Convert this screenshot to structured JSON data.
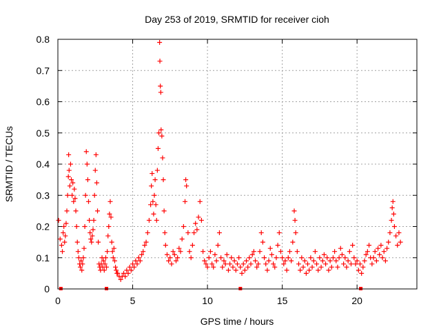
{
  "chart_data": {
    "type": "scatter",
    "title": "Day 253 of 2019, SRMTID for receiver cioh",
    "xlabel": "GPS time / hours",
    "ylabel": "SRMTID / TECUs",
    "xlim": [
      0,
      24
    ],
    "ylim": [
      0,
      0.8
    ],
    "x_ticks": [
      0,
      5,
      10,
      15,
      20
    ],
    "y_ticks": [
      0,
      0.1,
      0.2,
      0.3,
      0.4,
      0.5,
      0.6,
      0.7,
      0.8
    ],
    "y_tick_labels": [
      "0",
      "0.1",
      "0.2",
      "0.3",
      "0.4",
      "0.5",
      "0.6",
      "0.7",
      "0.8"
    ],
    "grid": true,
    "marker": "+",
    "series_color": "#ff0000",
    "baseline_markers_x": [
      0.2,
      3.25,
      12.2,
      20.25
    ],
    "series": [
      {
        "name": "SRMTID",
        "points": [
          [
            0.05,
            0.22
          ],
          [
            0.15,
            0.16
          ],
          [
            0.25,
            0.14
          ],
          [
            0.3,
            0.12
          ],
          [
            0.35,
            0.18
          ],
          [
            0.4,
            0.2
          ],
          [
            0.45,
            0.15
          ],
          [
            0.5,
            0.17
          ],
          [
            0.55,
            0.21
          ],
          [
            0.6,
            0.25
          ],
          [
            0.65,
            0.3
          ],
          [
            0.7,
            0.36
          ],
          [
            0.72,
            0.43
          ],
          [
            0.75,
            0.38
          ],
          [
            0.8,
            0.33
          ],
          [
            0.85,
            0.4
          ],
          [
            0.9,
            0.35
          ],
          [
            0.95,
            0.3
          ],
          [
            1.0,
            0.34
          ],
          [
            1.05,
            0.28
          ],
          [
            1.1,
            0.32
          ],
          [
            1.15,
            0.29
          ],
          [
            1.2,
            0.25
          ],
          [
            1.25,
            0.2
          ],
          [
            1.3,
            0.15
          ],
          [
            1.35,
            0.12
          ],
          [
            1.4,
            0.1
          ],
          [
            1.45,
            0.08
          ],
          [
            1.5,
            0.07
          ],
          [
            1.55,
            0.09
          ],
          [
            1.6,
            0.06
          ],
          [
            1.65,
            0.08
          ],
          [
            1.7,
            0.1
          ],
          [
            1.75,
            0.13
          ],
          [
            1.8,
            0.2
          ],
          [
            1.85,
            0.3
          ],
          [
            1.9,
            0.44
          ],
          [
            1.95,
            0.4
          ],
          [
            2.0,
            0.35
          ],
          [
            2.05,
            0.28
          ],
          [
            2.1,
            0.22
          ],
          [
            2.15,
            0.18
          ],
          [
            2.2,
            0.16
          ],
          [
            2.25,
            0.15
          ],
          [
            2.3,
            0.17
          ],
          [
            2.35,
            0.19
          ],
          [
            2.4,
            0.22
          ],
          [
            2.45,
            0.3
          ],
          [
            2.5,
            0.38
          ],
          [
            2.55,
            0.43
          ],
          [
            2.6,
            0.34
          ],
          [
            2.65,
            0.25
          ],
          [
            2.7,
            0.15
          ],
          [
            2.75,
            0.08
          ],
          [
            2.8,
            0.07
          ],
          [
            2.85,
            0.06
          ],
          [
            2.9,
            0.08
          ],
          [
            2.95,
            0.1
          ],
          [
            3.0,
            0.07
          ],
          [
            3.05,
            0.09
          ],
          [
            3.1,
            0.06
          ],
          [
            3.15,
            0.08
          ],
          [
            3.2,
            0.1
          ],
          [
            3.25,
            0.07
          ],
          [
            3.3,
            0.12
          ],
          [
            3.35,
            0.17
          ],
          [
            3.4,
            0.2
          ],
          [
            3.45,
            0.24
          ],
          [
            3.5,
            0.28
          ],
          [
            3.55,
            0.23
          ],
          [
            3.6,
            0.15
          ],
          [
            3.65,
            0.12
          ],
          [
            3.7,
            0.1
          ],
          [
            3.75,
            0.13
          ],
          [
            3.8,
            0.09
          ],
          [
            3.85,
            0.07
          ],
          [
            3.9,
            0.06
          ],
          [
            3.95,
            0.05
          ],
          [
            4.0,
            0.05
          ],
          [
            4.1,
            0.04
          ],
          [
            4.2,
            0.03
          ],
          [
            4.3,
            0.04
          ],
          [
            4.4,
            0.05
          ],
          [
            4.5,
            0.04
          ],
          [
            4.6,
            0.06
          ],
          [
            4.7,
            0.05
          ],
          [
            4.8,
            0.07
          ],
          [
            4.9,
            0.06
          ],
          [
            5.0,
            0.08
          ],
          [
            5.1,
            0.07
          ],
          [
            5.2,
            0.09
          ],
          [
            5.3,
            0.08
          ],
          [
            5.4,
            0.1
          ],
          [
            5.5,
            0.09
          ],
          [
            5.6,
            0.11
          ],
          [
            5.7,
            0.12
          ],
          [
            5.8,
            0.14
          ],
          [
            5.9,
            0.15
          ],
          [
            6.0,
            0.18
          ],
          [
            6.1,
            0.22
          ],
          [
            6.2,
            0.27
          ],
          [
            6.25,
            0.33
          ],
          [
            6.3,
            0.37
          ],
          [
            6.35,
            0.28
          ],
          [
            6.4,
            0.24
          ],
          [
            6.45,
            0.3
          ],
          [
            6.5,
            0.35
          ],
          [
            6.55,
            0.27
          ],
          [
            6.6,
            0.22
          ],
          [
            6.65,
            0.38
          ],
          [
            6.7,
            0.45
          ],
          [
            6.75,
            0.5
          ],
          [
            6.8,
            0.79
          ],
          [
            6.82,
            0.73
          ],
          [
            6.85,
            0.65
          ],
          [
            6.88,
            0.63
          ],
          [
            6.9,
            0.51
          ],
          [
            6.95,
            0.49
          ],
          [
            7.0,
            0.42
          ],
          [
            7.05,
            0.35
          ],
          [
            7.1,
            0.25
          ],
          [
            7.15,
            0.18
          ],
          [
            7.2,
            0.14
          ],
          [
            7.3,
            0.11
          ],
          [
            7.4,
            0.09
          ],
          [
            7.5,
            0.1
          ],
          [
            7.6,
            0.08
          ],
          [
            7.7,
            0.12
          ],
          [
            7.8,
            0.11
          ],
          [
            7.9,
            0.09
          ],
          [
            8.0,
            0.1
          ],
          [
            8.1,
            0.13
          ],
          [
            8.2,
            0.12
          ],
          [
            8.3,
            0.16
          ],
          [
            8.4,
            0.2
          ],
          [
            8.5,
            0.28
          ],
          [
            8.55,
            0.35
          ],
          [
            8.6,
            0.33
          ],
          [
            8.7,
            0.18
          ],
          [
            8.8,
            0.12
          ],
          [
            8.9,
            0.1
          ],
          [
            9.0,
            0.14
          ],
          [
            9.1,
            0.18
          ],
          [
            9.2,
            0.21
          ],
          [
            9.3,
            0.19
          ],
          [
            9.4,
            0.23
          ],
          [
            9.5,
            0.28
          ],
          [
            9.6,
            0.22
          ],
          [
            9.7,
            0.12
          ],
          [
            9.8,
            0.09
          ],
          [
            9.9,
            0.08
          ],
          [
            10.0,
            0.07
          ],
          [
            10.1,
            0.1
          ],
          [
            10.2,
            0.12
          ],
          [
            10.3,
            0.08
          ],
          [
            10.4,
            0.07
          ],
          [
            10.5,
            0.11
          ],
          [
            10.6,
            0.09
          ],
          [
            10.7,
            0.14
          ],
          [
            10.8,
            0.18
          ],
          [
            10.9,
            0.1
          ],
          [
            11.0,
            0.07
          ],
          [
            11.1,
            0.09
          ],
          [
            11.2,
            0.08
          ],
          [
            11.3,
            0.11
          ],
          [
            11.4,
            0.06
          ],
          [
            11.5,
            0.08
          ],
          [
            11.6,
            0.1
          ],
          [
            11.7,
            0.07
          ],
          [
            11.8,
            0.09
          ],
          [
            11.9,
            0.06
          ],
          [
            12.0,
            0.08
          ],
          [
            12.1,
            0.1
          ],
          [
            12.2,
            0.07
          ],
          [
            12.3,
            0.05
          ],
          [
            12.4,
            0.08
          ],
          [
            12.5,
            0.06
          ],
          [
            12.6,
            0.09
          ],
          [
            12.7,
            0.07
          ],
          [
            12.8,
            0.1
          ],
          [
            12.9,
            0.08
          ],
          [
            13.0,
            0.11
          ],
          [
            13.1,
            0.12
          ],
          [
            13.2,
            0.09
          ],
          [
            13.3,
            0.07
          ],
          [
            13.4,
            0.08
          ],
          [
            13.5,
            0.12
          ],
          [
            13.6,
            0.18
          ],
          [
            13.7,
            0.15
          ],
          [
            13.8,
            0.1
          ],
          [
            13.9,
            0.08
          ],
          [
            14.0,
            0.06
          ],
          [
            14.1,
            0.09
          ],
          [
            14.2,
            0.13
          ],
          [
            14.3,
            0.11
          ],
          [
            14.4,
            0.08
          ],
          [
            14.5,
            0.07
          ],
          [
            14.6,
            0.1
          ],
          [
            14.7,
            0.14
          ],
          [
            14.8,
            0.18
          ],
          [
            14.9,
            0.12
          ],
          [
            15.0,
            0.1
          ],
          [
            15.1,
            0.08
          ],
          [
            15.2,
            0.09
          ],
          [
            15.3,
            0.06
          ],
          [
            15.4,
            0.1
          ],
          [
            15.5,
            0.12
          ],
          [
            15.6,
            0.09
          ],
          [
            15.7,
            0.15
          ],
          [
            15.8,
            0.25
          ],
          [
            15.85,
            0.22
          ],
          [
            15.9,
            0.18
          ],
          [
            16.0,
            0.12
          ],
          [
            16.1,
            0.08
          ],
          [
            16.2,
            0.06
          ],
          [
            16.3,
            0.1
          ],
          [
            16.4,
            0.07
          ],
          [
            16.5,
            0.09
          ],
          [
            16.6,
            0.05
          ],
          [
            16.7,
            0.08
          ],
          [
            16.8,
            0.06
          ],
          [
            16.9,
            0.1
          ],
          [
            17.0,
            0.07
          ],
          [
            17.1,
            0.09
          ],
          [
            17.2,
            0.12
          ],
          [
            17.3,
            0.08
          ],
          [
            17.4,
            0.06
          ],
          [
            17.5,
            0.1
          ],
          [
            17.6,
            0.07
          ],
          [
            17.7,
            0.09
          ],
          [
            17.8,
            0.11
          ],
          [
            17.9,
            0.08
          ],
          [
            18.0,
            0.1
          ],
          [
            18.1,
            0.06
          ],
          [
            18.2,
            0.09
          ],
          [
            18.3,
            0.07
          ],
          [
            18.4,
            0.1
          ],
          [
            18.5,
            0.12
          ],
          [
            18.6,
            0.09
          ],
          [
            18.7,
            0.07
          ],
          [
            18.8,
            0.1
          ],
          [
            18.9,
            0.13
          ],
          [
            19.0,
            0.11
          ],
          [
            19.1,
            0.08
          ],
          [
            19.2,
            0.1
          ],
          [
            19.3,
            0.07
          ],
          [
            19.4,
            0.09
          ],
          [
            19.5,
            0.12
          ],
          [
            19.6,
            0.08
          ],
          [
            19.7,
            0.14
          ],
          [
            19.8,
            0.1
          ],
          [
            19.9,
            0.08
          ],
          [
            20.0,
            0.09
          ],
          [
            20.1,
            0.06
          ],
          [
            20.2,
            0.08
          ],
          [
            20.3,
            0.05
          ],
          [
            20.4,
            0.07
          ],
          [
            20.5,
            0.09
          ],
          [
            20.6,
            0.11
          ],
          [
            20.7,
            0.12
          ],
          [
            20.8,
            0.14
          ],
          [
            20.9,
            0.1
          ],
          [
            21.0,
            0.08
          ],
          [
            21.1,
            0.1
          ],
          [
            21.2,
            0.12
          ],
          [
            21.3,
            0.09
          ],
          [
            21.4,
            0.13
          ],
          [
            21.5,
            0.11
          ],
          [
            21.6,
            0.14
          ],
          [
            21.7,
            0.1
          ],
          [
            21.8,
            0.12
          ],
          [
            21.9,
            0.09
          ],
          [
            22.0,
            0.13
          ],
          [
            22.1,
            0.15
          ],
          [
            22.2,
            0.18
          ],
          [
            22.3,
            0.22
          ],
          [
            22.35,
            0.26
          ],
          [
            22.4,
            0.28
          ],
          [
            22.45,
            0.24
          ],
          [
            22.5,
            0.2
          ],
          [
            22.6,
            0.17
          ],
          [
            22.7,
            0.14
          ],
          [
            22.8,
            0.18
          ],
          [
            22.9,
            0.15
          ]
        ]
      }
    ]
  }
}
